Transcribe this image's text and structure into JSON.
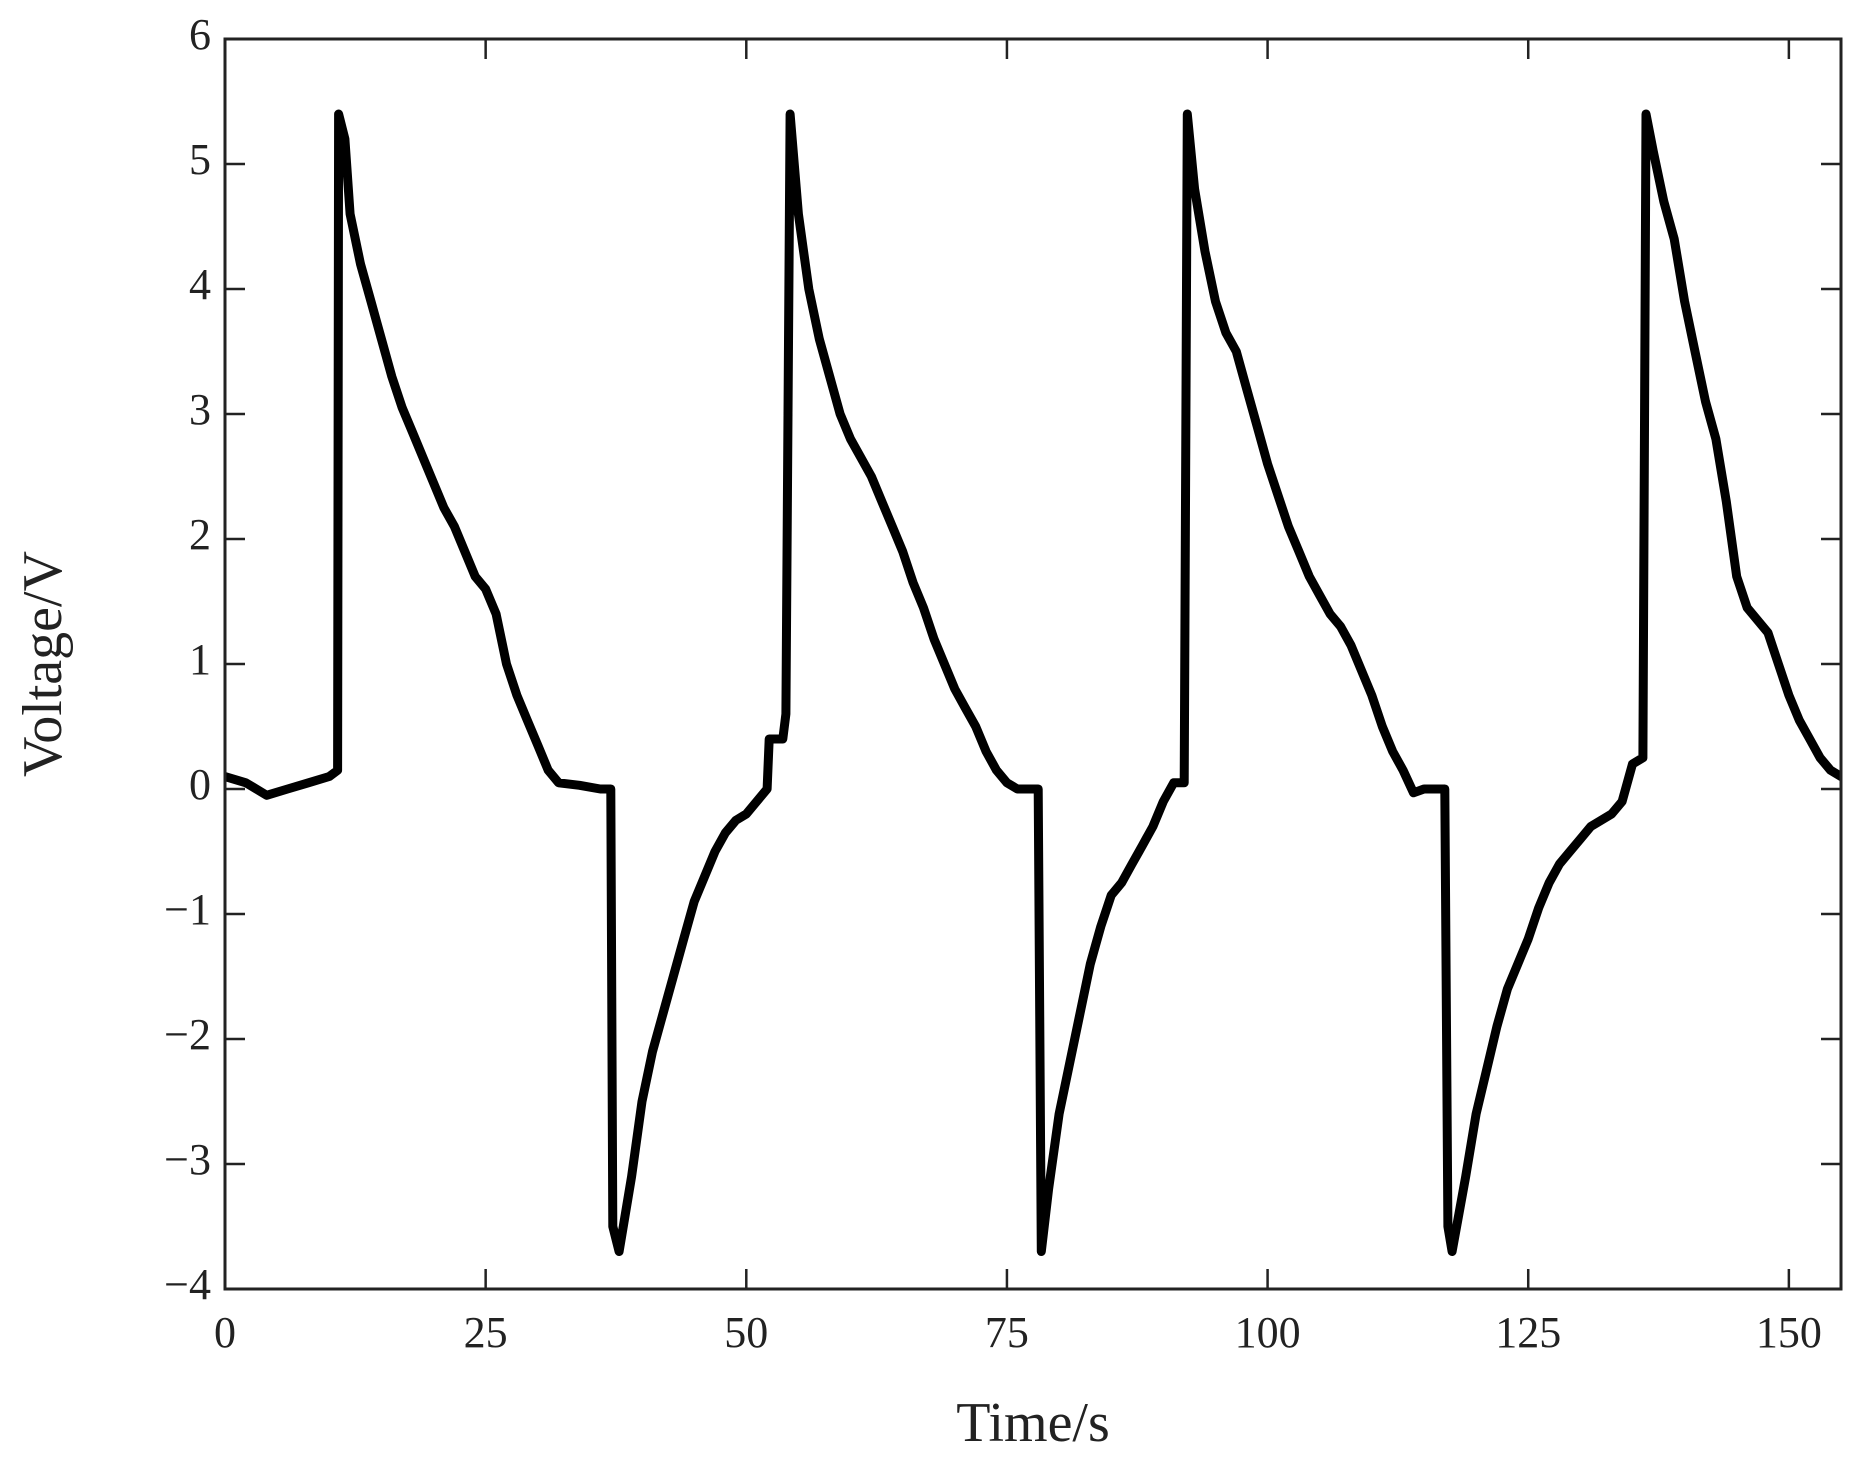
{
  "chart_data": {
    "type": "line",
    "x_label": "Time/s",
    "y_label": "Voltage/V",
    "xlim": [
      0,
      155
    ],
    "ylim": [
      -4,
      6
    ],
    "xticks": [
      0,
      25,
      50,
      75,
      100,
      125,
      150
    ],
    "yticks": [
      {
        "value": -4,
        "label": "−4"
      },
      {
        "value": -3,
        "label": "−3"
      },
      {
        "value": -2,
        "label": "−2"
      },
      {
        "value": -1,
        "label": "−1"
      },
      0,
      1,
      2,
      3,
      4,
      5,
      6
    ],
    "grid": false,
    "series": [
      {
        "color": "#000000",
        "x": [
          0,
          2,
          4,
          6,
          8,
          10,
          10.8,
          10.9,
          11.5,
          12,
          13,
          14,
          15,
          16,
          17,
          18,
          19,
          20,
          21,
          22,
          23,
          24,
          25,
          26,
          27,
          28,
          29,
          30,
          31,
          32,
          34,
          36,
          37,
          37.2,
          37.8,
          39,
          40,
          41,
          42,
          43,
          44,
          45,
          46,
          47,
          48,
          49,
          50,
          51,
          52,
          52.2,
          53.5,
          53.8,
          54.2,
          55,
          56,
          57,
          58,
          59,
          60,
          61,
          62,
          63,
          64,
          65,
          66,
          67,
          68,
          69,
          70,
          71,
          72,
          73,
          74,
          75,
          76,
          77,
          78,
          78.3,
          79,
          80,
          81,
          82,
          83,
          84,
          85,
          86,
          87,
          88,
          89,
          90,
          91,
          92,
          92.3,
          93,
          94,
          95,
          96,
          97,
          98,
          99,
          100,
          101,
          102,
          103,
          104,
          105,
          106,
          107,
          108,
          109,
          110,
          111,
          112,
          113,
          114,
          115,
          117,
          117.3,
          117.7,
          119,
          120,
          121,
          122,
          123,
          124,
          125,
          126,
          127,
          128,
          129,
          130,
          131,
          132,
          133,
          134,
          135,
          136,
          136.3,
          137,
          138,
          139,
          140,
          141,
          142,
          143,
          144,
          145,
          146,
          147,
          148,
          149,
          150,
          151,
          152,
          153,
          154,
          155
        ],
        "values": [
          0.1,
          0.05,
          -0.05,
          0,
          0.05,
          0.1,
          0.15,
          5.4,
          5.2,
          4.6,
          4.2,
          3.9,
          3.6,
          3.3,
          3.05,
          2.85,
          2.65,
          2.45,
          2.25,
          2.1,
          1.9,
          1.7,
          1.6,
          1.4,
          1.0,
          0.75,
          0.55,
          0.35,
          0.15,
          0.05,
          0.03,
          0.0,
          0.0,
          -3.5,
          -3.7,
          -3.1,
          -2.5,
          -2.1,
          -1.8,
          -1.5,
          -1.2,
          -0.9,
          -0.7,
          -0.5,
          -0.35,
          -0.25,
          -0.2,
          -0.1,
          0.0,
          0.4,
          0.4,
          0.6,
          5.4,
          4.6,
          4.0,
          3.6,
          3.3,
          3.0,
          2.8,
          2.65,
          2.5,
          2.3,
          2.1,
          1.9,
          1.65,
          1.45,
          1.2,
          1.0,
          0.8,
          0.65,
          0.5,
          0.3,
          0.15,
          0.05,
          0.0,
          0.0,
          0.0,
          -3.7,
          -3.2,
          -2.6,
          -2.2,
          -1.8,
          -1.4,
          -1.1,
          -0.85,
          -0.75,
          -0.6,
          -0.45,
          -0.3,
          -0.1,
          0.05,
          0.05,
          5.4,
          4.8,
          4.3,
          3.9,
          3.65,
          3.5,
          3.2,
          2.9,
          2.6,
          2.35,
          2.1,
          1.9,
          1.7,
          1.55,
          1.4,
          1.3,
          1.15,
          0.95,
          0.75,
          0.5,
          0.3,
          0.15,
          -0.03,
          0.0,
          0.0,
          -3.5,
          -3.7,
          -3.1,
          -2.6,
          -2.25,
          -1.9,
          -1.6,
          -1.4,
          -1.2,
          -0.95,
          -0.75,
          -0.6,
          -0.5,
          -0.4,
          -0.3,
          -0.25,
          -0.2,
          -0.1,
          0.2,
          0.25,
          5.4,
          5.1,
          4.7,
          4.4,
          3.9,
          3.5,
          3.1,
          2.8,
          2.3,
          1.7,
          1.45,
          1.35,
          1.25,
          1.0,
          0.75,
          0.55,
          0.4,
          0.25,
          0.15,
          0.1
        ]
      }
    ]
  }
}
